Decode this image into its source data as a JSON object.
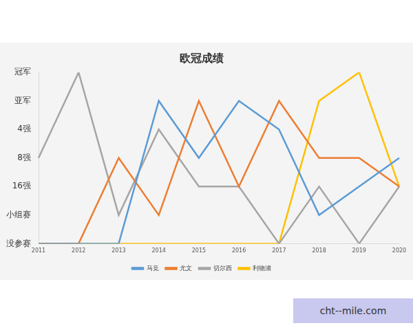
{
  "chart_data": {
    "type": "line",
    "title": "欧冠成绩",
    "categories": [
      "2011",
      "2012",
      "2013",
      "2014",
      "2015",
      "2016",
      "2017",
      "2018",
      "2019",
      "2020"
    ],
    "series": [
      {
        "name": "马竞",
        "color": "#5b9bd5",
        "values": [
          0,
          0,
          0,
          5,
          3,
          5,
          4,
          1,
          2,
          3
        ]
      },
      {
        "name": "尤文",
        "color": "#ed7d31",
        "values": [
          0,
          0,
          3,
          1,
          5,
          2,
          5,
          3,
          3,
          2
        ]
      },
      {
        "name": "切尔西",
        "color": "#a5a5a5",
        "values": [
          3,
          6,
          1,
          4,
          2,
          2,
          0,
          2,
          0,
          2
        ]
      },
      {
        "name": "利物浦",
        "color": "#ffc000",
        "values": [
          0,
          0,
          0,
          0,
          0,
          0,
          0,
          5,
          6,
          2
        ]
      }
    ],
    "ylim": [
      0,
      6
    ],
    "yticks": [
      {
        "value": 0,
        "label": "没参赛"
      },
      {
        "value": 1,
        "label": "小组赛"
      },
      {
        "value": 2,
        "label": "16强"
      },
      {
        "value": 3,
        "label": "8强"
      },
      {
        "value": 4,
        "label": "4强"
      },
      {
        "value": 5,
        "label": "亚军"
      },
      {
        "value": 6,
        "label": "冠军"
      }
    ],
    "grid": false,
    "legend": "bottom",
    "annotations": [
      "cht--mile.com"
    ]
  }
}
